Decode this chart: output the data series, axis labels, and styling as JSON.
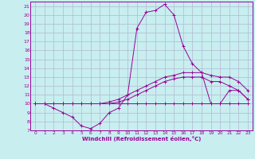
{
  "xlabel": "Windchill (Refroidissement éolien,°C)",
  "background_color": "#c8eef0",
  "grid_color": "#b0b8d0",
  "line_color": "#990099",
  "xlim": [
    -0.5,
    23.5
  ],
  "ylim": [
    7,
    21.5
  ],
  "xticks": [
    0,
    1,
    2,
    3,
    4,
    5,
    6,
    7,
    8,
    9,
    10,
    11,
    12,
    13,
    14,
    15,
    16,
    17,
    18,
    19,
    20,
    21,
    22,
    23
  ],
  "yticks": [
    7,
    8,
    9,
    10,
    11,
    12,
    13,
    14,
    15,
    16,
    17,
    18,
    19,
    20,
    21
  ],
  "lines": [
    {
      "x": [
        0,
        1,
        2,
        3,
        4,
        5,
        6,
        7,
        8,
        9,
        10,
        11,
        12,
        13,
        14,
        15,
        16,
        17,
        18,
        19,
        20,
        21,
        22,
        23
      ],
      "y": [
        10,
        10,
        9.5,
        9,
        8.5,
        7.5,
        7.2,
        7.8,
        9,
        9.5,
        11,
        18.5,
        20.3,
        20.5,
        21.2,
        20,
        16.5,
        14.5,
        13.5,
        10,
        10,
        11.5,
        11.5,
        10.5
      ]
    },
    {
      "x": [
        0,
        1,
        2,
        3,
        4,
        5,
        6,
        7,
        8,
        9,
        10,
        11,
        12,
        13,
        14,
        15,
        16,
        17,
        18,
        19,
        20,
        21,
        22,
        23
      ],
      "y": [
        10,
        10,
        10,
        10,
        10,
        10,
        10,
        10,
        10.2,
        10.5,
        11,
        11.5,
        12,
        12.5,
        13,
        13.2,
        13.5,
        13.5,
        13.5,
        13.2,
        13,
        13,
        12.5,
        11.5
      ]
    },
    {
      "x": [
        0,
        1,
        2,
        3,
        4,
        5,
        6,
        7,
        8,
        9,
        10,
        11,
        12,
        13,
        14,
        15,
        16,
        17,
        18,
        19,
        20,
        21,
        22,
        23
      ],
      "y": [
        10,
        10,
        10,
        10,
        10,
        10,
        10,
        10,
        10,
        10.2,
        10.5,
        11,
        11.5,
        12,
        12.5,
        12.8,
        13,
        13,
        13,
        12.5,
        12.5,
        12,
        11.5,
        10.5
      ]
    },
    {
      "x": [
        0,
        1,
        2,
        3,
        4,
        5,
        6,
        7,
        8,
        9,
        10,
        11,
        12,
        13,
        14,
        15,
        16,
        17,
        18,
        19,
        20,
        21,
        22,
        23
      ],
      "y": [
        10,
        10,
        10,
        10,
        10,
        10,
        10,
        10,
        10,
        10,
        10,
        10,
        10,
        10,
        10,
        10,
        10,
        10,
        10,
        10,
        10,
        10,
        10,
        10
      ]
    }
  ]
}
